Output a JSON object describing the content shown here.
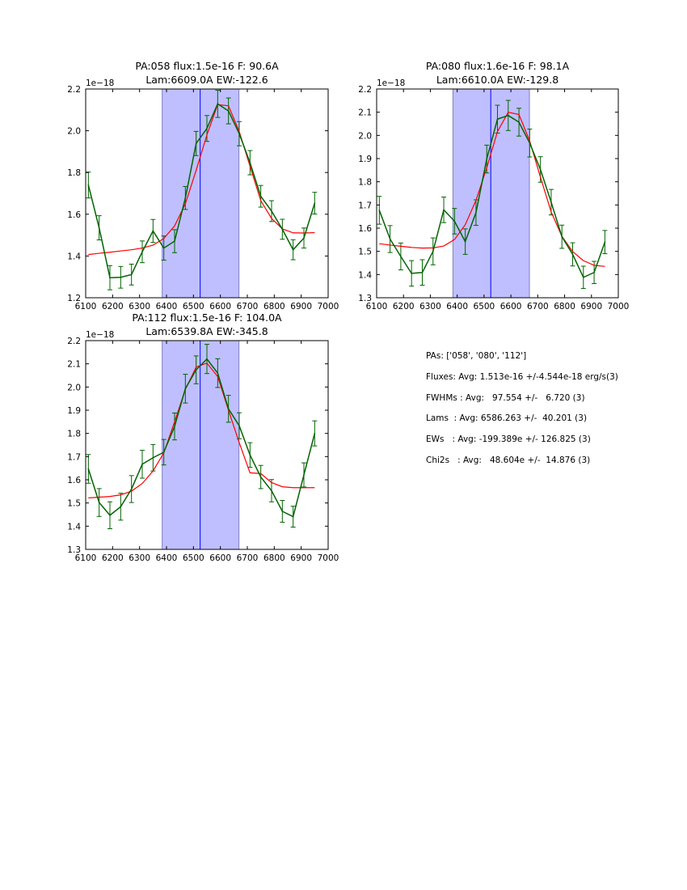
{
  "chart_data": [
    {
      "type": "line",
      "title": [
        "PA:058 flux:1.5e-16 F: 90.6A",
        "Lam:6609.0A EW:-122.6"
      ],
      "offset_label": "1e−18",
      "xlim": [
        6100,
        7000
      ],
      "ylim": [
        1.2,
        2.2
      ],
      "xticks": [
        6100,
        6200,
        6300,
        6400,
        6500,
        6600,
        6700,
        6800,
        6900,
        7000
      ],
      "yticks": [
        "1.2",
        "1.4",
        "1.6",
        "1.8",
        "2.0",
        "2.2"
      ],
      "shaded_band": [
        6384,
        6669
      ],
      "center_line": 6525,
      "x": [
        6110,
        6150,
        6190,
        6230,
        6270,
        6310,
        6350,
        6390,
        6430,
        6470,
        6510,
        6550,
        6590,
        6630,
        6670,
        6710,
        6750,
        6790,
        6830,
        6870,
        6910,
        6950
      ],
      "series": [
        {
          "name": "data",
          "color": "#006400",
          "values": [
            1.74,
            1.535,
            1.296,
            1.298,
            1.311,
            1.42,
            1.52,
            1.438,
            1.471,
            1.678,
            1.939,
            2.011,
            2.129,
            2.095,
            1.986,
            1.847,
            1.686,
            1.615,
            1.528,
            1.43,
            1.486,
            1.653
          ],
          "yerr": [
            0.062,
            0.058,
            0.058,
            0.052,
            0.05,
            0.052,
            0.055,
            0.058,
            0.055,
            0.055,
            0.058,
            0.062,
            0.065,
            0.062,
            0.058,
            0.058,
            0.052,
            0.05,
            0.048,
            0.048,
            0.048,
            0.052
          ]
        },
        {
          "name": "fit",
          "color": "#ff0000",
          "values": [
            1.407,
            1.413,
            1.418,
            1.424,
            1.43,
            1.438,
            1.452,
            1.484,
            1.544,
            1.65,
            1.81,
            1.98,
            2.125,
            2.12,
            1.996,
            1.83,
            1.665,
            1.58,
            1.53,
            1.511,
            1.51,
            1.512
          ]
        }
      ]
    },
    {
      "type": "line",
      "title": [
        "PA:080 flux:1.6e-16 F: 98.1A",
        "Lam:6610.0A EW:-129.8"
      ],
      "offset_label": "1e−18",
      "xlim": [
        6100,
        7000
      ],
      "ylim": [
        1.3,
        2.2
      ],
      "xticks": [
        6100,
        6200,
        6300,
        6400,
        6500,
        6600,
        6700,
        6800,
        6900,
        7000
      ],
      "yticks": [
        "1.3",
        "1.4",
        "1.5",
        "1.6",
        "1.7",
        "1.8",
        "1.9",
        "2.0",
        "2.1",
        "2.2"
      ],
      "shaded_band": [
        6384,
        6669
      ],
      "center_line": 6525,
      "x": [
        6110,
        6150,
        6190,
        6230,
        6270,
        6310,
        6350,
        6390,
        6430,
        6470,
        6510,
        6550,
        6590,
        6630,
        6670,
        6710,
        6750,
        6790,
        6830,
        6870,
        6910,
        6950
      ],
      "series": [
        {
          "name": "data",
          "color": "#006400",
          "values": [
            1.677,
            1.553,
            1.478,
            1.405,
            1.409,
            1.5,
            1.679,
            1.63,
            1.542,
            1.667,
            1.898,
            2.07,
            2.086,
            2.057,
            1.967,
            1.853,
            1.712,
            1.563,
            1.487,
            1.388,
            1.409,
            1.54
          ],
          "yerr": [
            0.06,
            0.058,
            0.058,
            0.055,
            0.055,
            0.058,
            0.055,
            0.055,
            0.055,
            0.055,
            0.06,
            0.06,
            0.065,
            0.06,
            0.06,
            0.055,
            0.055,
            0.05,
            0.05,
            0.048,
            0.048,
            0.05
          ]
        },
        {
          "name": "fit",
          "color": "#ff0000",
          "values": [
            1.533,
            1.527,
            1.522,
            1.517,
            1.514,
            1.515,
            1.523,
            1.551,
            1.615,
            1.72,
            1.86,
            2.016,
            2.1,
            2.09,
            1.976,
            1.82,
            1.67,
            1.565,
            1.499,
            1.46,
            1.44,
            1.435
          ]
        }
      ]
    },
    {
      "type": "line",
      "title": [
        "PA:112 flux:1.5e-16 F: 104.0A",
        "Lam:6539.8A EW:-345.8"
      ],
      "offset_label": "1e−18",
      "xlim": [
        6100,
        7000
      ],
      "ylim": [
        1.3,
        2.2
      ],
      "xticks": [
        6100,
        6200,
        6300,
        6400,
        6500,
        6600,
        6700,
        6800,
        6900,
        7000
      ],
      "yticks": [
        "1.3",
        "1.4",
        "1.5",
        "1.6",
        "1.7",
        "1.8",
        "1.9",
        "2.0",
        "2.1",
        "2.2"
      ],
      "shaded_band": [
        6384,
        6669
      ],
      "center_line": 6525,
      "x": [
        6110,
        6150,
        6190,
        6230,
        6270,
        6310,
        6350,
        6390,
        6430,
        6470,
        6510,
        6550,
        6590,
        6630,
        6670,
        6710,
        6750,
        6790,
        6830,
        6870,
        6910,
        6950
      ],
      "series": [
        {
          "name": "data",
          "color": "#006400",
          "values": [
            1.647,
            1.502,
            1.447,
            1.484,
            1.56,
            1.667,
            1.695,
            1.719,
            1.83,
            1.993,
            2.074,
            2.121,
            2.06,
            1.906,
            1.833,
            1.707,
            1.612,
            1.553,
            1.464,
            1.441,
            1.621,
            1.8
          ],
          "yerr": [
            0.062,
            0.06,
            0.058,
            0.058,
            0.058,
            0.06,
            0.057,
            0.055,
            0.058,
            0.062,
            0.06,
            0.063,
            0.062,
            0.058,
            0.056,
            0.053,
            0.05,
            0.048,
            0.047,
            0.045,
            0.052,
            0.054
          ]
        },
        {
          "name": "fit",
          "color": "#ff0000",
          "values": [
            1.522,
            1.525,
            1.528,
            1.535,
            1.551,
            1.584,
            1.638,
            1.716,
            1.85,
            1.99,
            2.086,
            2.103,
            2.045,
            1.9,
            1.76,
            1.63,
            1.627,
            1.588,
            1.57,
            1.566,
            1.566,
            1.566
          ]
        }
      ]
    }
  ],
  "colors": {
    "band": "#bfbfff",
    "band_edge": "#7f7fbf",
    "center_line": "#0000ff"
  },
  "stats": [
    "PAs: ['058', '080', '112']",
    "Fluxes: Avg: 1.513e-16 +/-4.544e-18 erg/s(3)",
    "FWHMs : Avg:   97.554 +/-   6.720 (3)",
    "Lams  : Avg: 6586.263 +/-  40.201 (3)",
    "EWs   : Avg: -199.389e +/- 126.825 (3)",
    "Chi2s   : Avg:   48.604e +/-  14.876 (3)"
  ]
}
